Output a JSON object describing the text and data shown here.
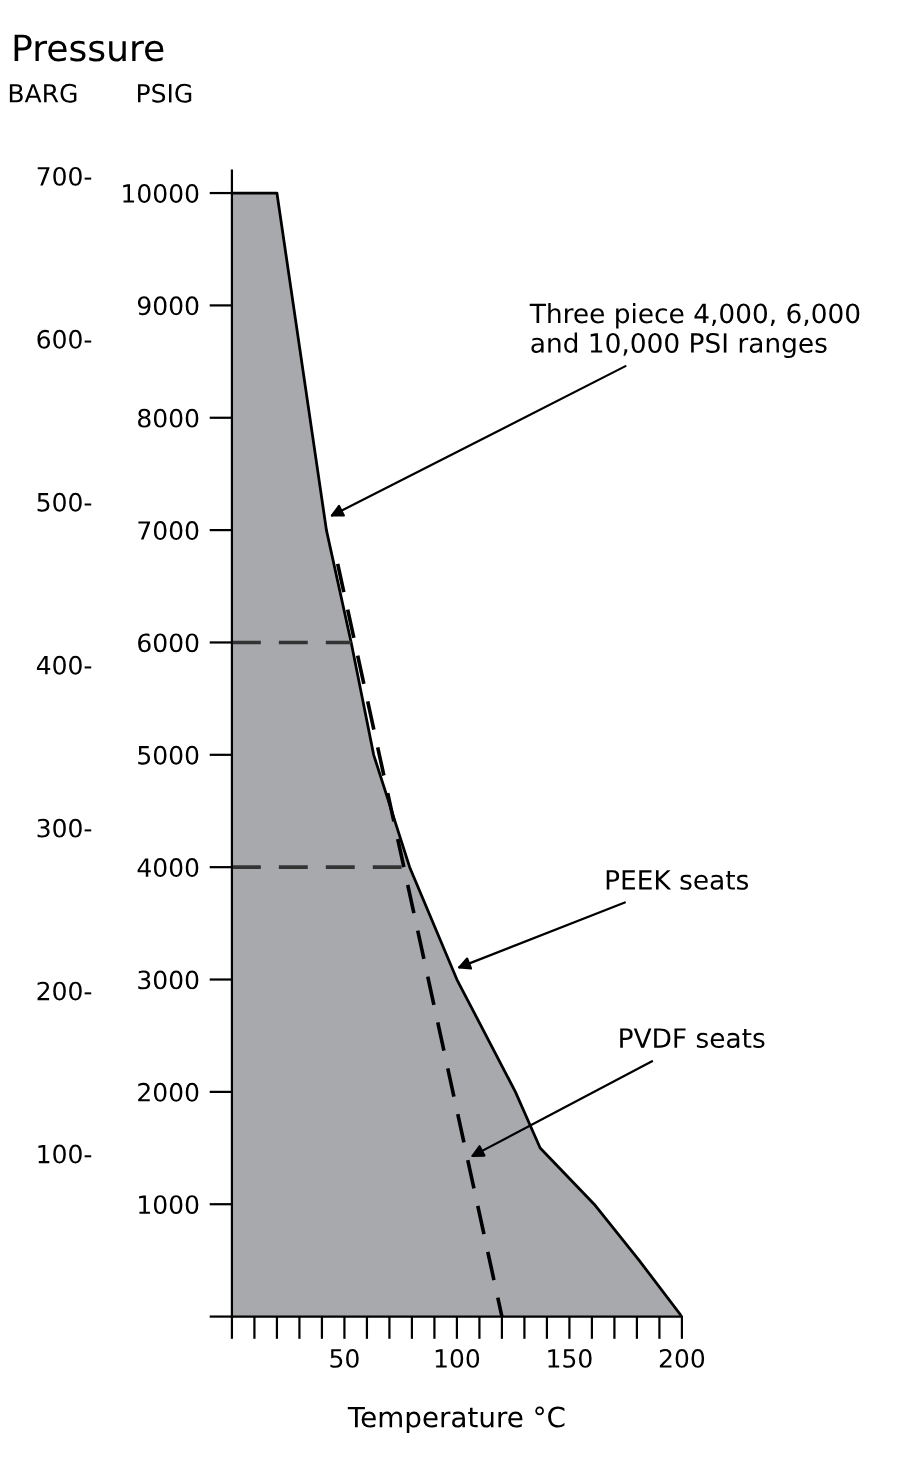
{
  "chart_data": {
    "type": "area",
    "title": "Pressure",
    "xlabel": "Temperature °C",
    "ylabel": "PSIG",
    "y2label": "BARG",
    "series": [
      {
        "color": "#a7a9ac",
        "x": [
          0,
          20,
          42,
          53,
          63,
          79,
          100,
          126,
          137,
          161,
          181,
          200
        ],
        "values": [
          10000,
          10000,
          7000,
          6000,
          5000,
          4000,
          3000,
          2000,
          1500,
          1000,
          500,
          0
        ]
      },
      {
        "type": "line",
        "color": "#000000",
        "line_style": "dashed",
        "x": [
          47,
          120
        ],
        "values": [
          6700,
          0
        ]
      },
      {
        "type": "line",
        "color": "#333333",
        "line_style": "dashed",
        "x": [
          0,
          53
        ],
        "values": [
          6000,
          6000
        ]
      },
      {
        "type": "line",
        "color": "#333333",
        "line_style": "dashed",
        "x": [
          0,
          79
        ],
        "values": [
          4000,
          4000
        ]
      }
    ],
    "xlim": [
      0,
      200
    ],
    "ylim": [
      0,
      10200
    ],
    "y2lim": [
      0,
      703.3
    ],
    "xticks": [
      {
        "value": 0,
        "label": null
      },
      {
        "value": 10,
        "label": null
      },
      {
        "value": 20,
        "label": null
      },
      {
        "value": 30,
        "label": null
      },
      {
        "value": 40,
        "label": null
      },
      50,
      {
        "value": 60,
        "label": null
      },
      {
        "value": 70,
        "label": null
      },
      {
        "value": 80,
        "label": null
      },
      {
        "value": 90,
        "label": null
      },
      100,
      {
        "value": 110,
        "label": null
      },
      {
        "value": 120,
        "label": null
      },
      {
        "value": 130,
        "label": null
      },
      {
        "value": 140,
        "label": null
      },
      150,
      {
        "value": 160,
        "label": null
      },
      {
        "value": 170,
        "label": null
      },
      {
        "value": 180,
        "label": null
      },
      {
        "value": 190,
        "label": null
      },
      200
    ],
    "yticks": [
      {
        "value": 0,
        "label": null
      },
      1000,
      2000,
      3000,
      4000,
      5000,
      6000,
      7000,
      8000,
      9000,
      10000
    ],
    "y2ticks": [
      {
        "value": 100,
        "label": "100-"
      },
      {
        "value": 200,
        "label": "200-"
      },
      {
        "value": 300,
        "label": "300-"
      },
      {
        "value": 400,
        "label": "400-"
      },
      {
        "value": 500,
        "label": "500-"
      },
      {
        "value": 600,
        "label": "600-"
      },
      {
        "value": 700,
        "label": "700-"
      }
    ],
    "annotations": [
      {
        "text": "Three piece 4,000, 6,000\nand 10,000 PSI ranges",
        "x": 43.5,
        "y": 7120
      },
      {
        "text": "PEEK seats",
        "x": 100,
        "y": 3100
      },
      {
        "text": "PVDF seats",
        "x": 106,
        "y": 1420
      }
    ],
    "grid": false,
    "legend": false
  }
}
